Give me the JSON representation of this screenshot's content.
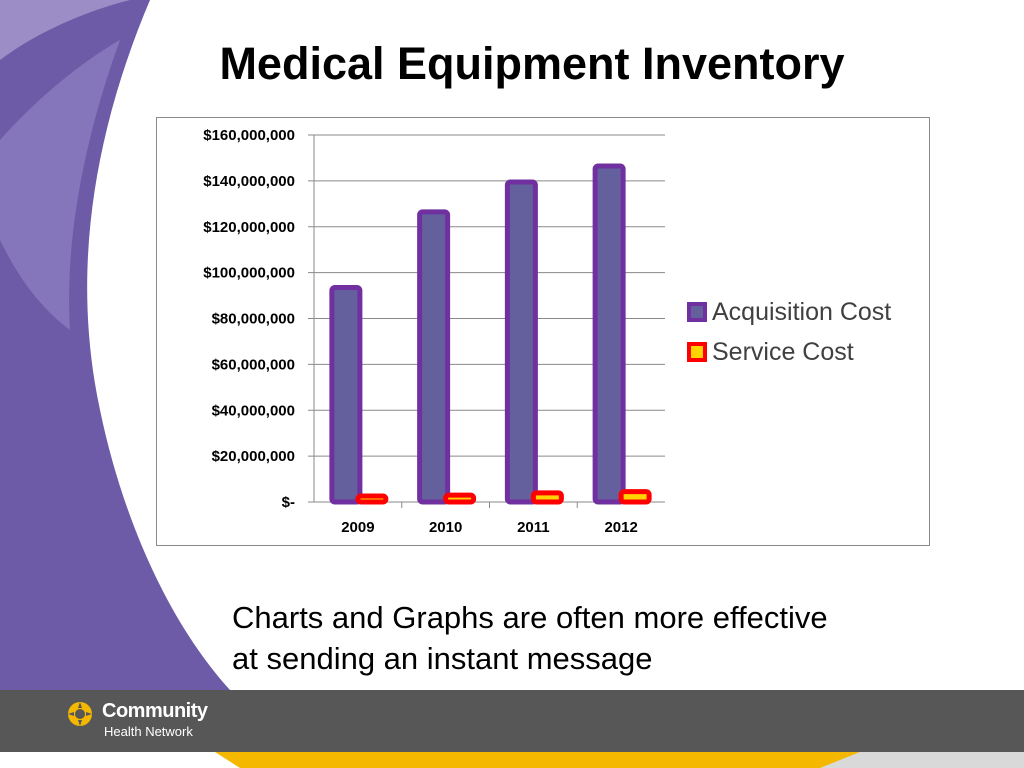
{
  "slide": {
    "title": "Medical Equipment Inventory",
    "caption_line1": "Charts and Graphs are often more effective",
    "caption_line2": "at sending an instant message"
  },
  "logo": {
    "name": "Community",
    "subtitle": "Health Network"
  },
  "colors": {
    "purple_deco": "#6E5BA8",
    "purple_light": "#9C8DC6",
    "footer_gray": "#575757",
    "stripe_yellow": "#F5B800",
    "acquisition_fill": "#64609E",
    "acquisition_border": "#7030A0",
    "service_fill": "#FFD200",
    "service_border": "#FF0000"
  },
  "chart_data": {
    "type": "bar",
    "title": "",
    "xlabel": "",
    "ylabel": "",
    "categories": [
      "2009",
      "2010",
      "2011",
      "2012"
    ],
    "series": [
      {
        "name": "Acquisition Cost",
        "values": [
          93500000,
          126500000,
          139500000,
          146500000
        ]
      },
      {
        "name": "Service Cost",
        "values": [
          2500000,
          3000000,
          4000000,
          4500000
        ]
      }
    ],
    "ylim": [
      0,
      160000000
    ],
    "y_tick_labels": [
      "$-",
      "$20,000,000",
      "$40,000,000",
      "$60,000,000",
      "$80,000,000",
      "$100,000,000",
      "$120,000,000",
      "$140,000,000",
      "$160,000,000"
    ],
    "grid": true,
    "legend_position": "right"
  }
}
